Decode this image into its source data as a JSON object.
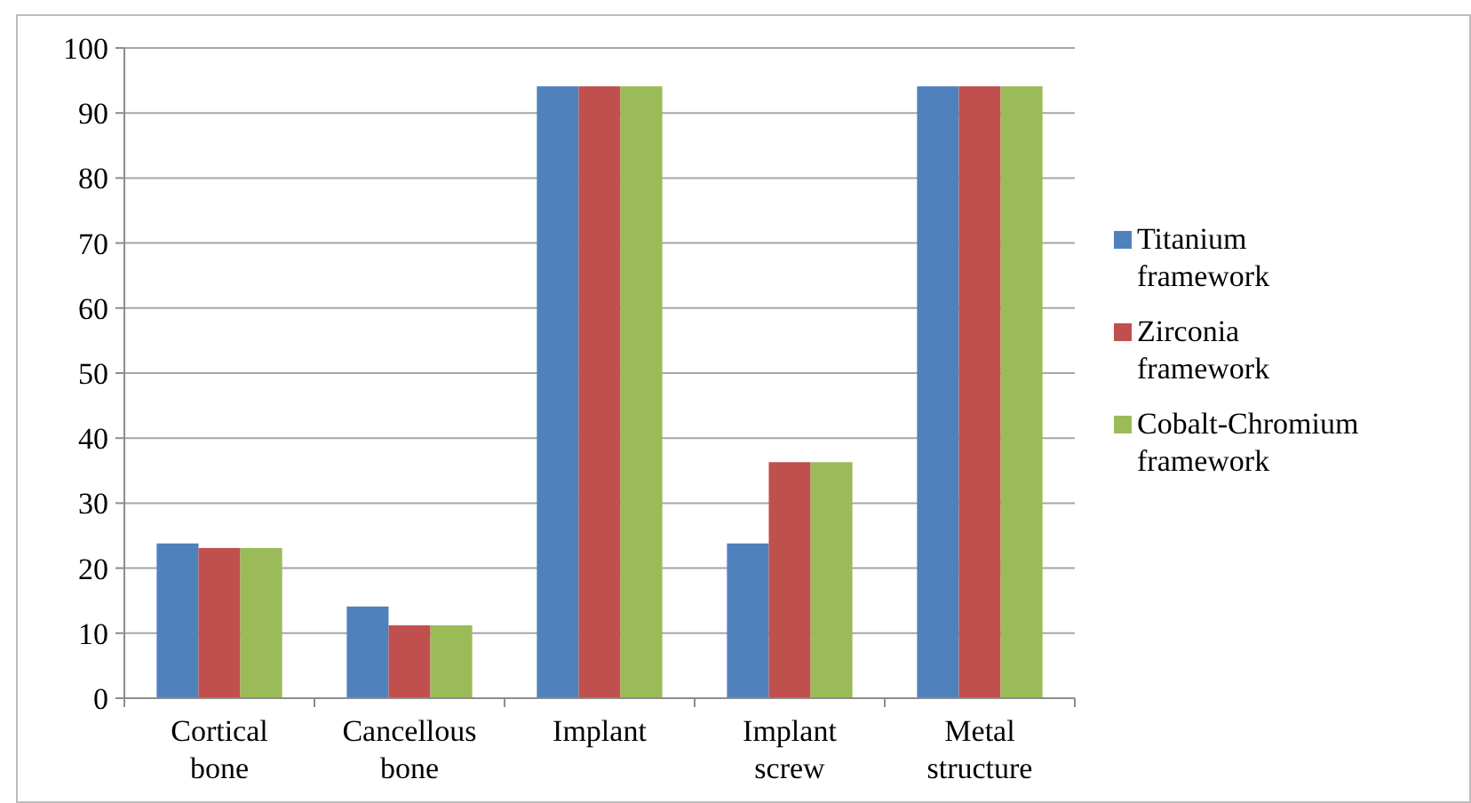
{
  "chart_data": {
    "type": "bar",
    "categories": [
      "Cortical bone",
      "Cancellous bone",
      "Implant",
      "Implant screw",
      "Metal structure"
    ],
    "series": [
      {
        "name": "Titanium framework",
        "color": "#4f81bd",
        "values": [
          23.8,
          14.1,
          94.1,
          23.8,
          94.1
        ]
      },
      {
        "name": "Zirconia framework",
        "color": "#c0504d",
        "values": [
          23.1,
          11.2,
          94.1,
          36.3,
          94.1
        ]
      },
      {
        "name": "Cobalt-Chromium framework",
        "color": "#9bbb59",
        "values": [
          23.1,
          11.2,
          94.1,
          36.3,
          94.1
        ]
      }
    ],
    "ylim": [
      0,
      100
    ],
    "yticks": [
      0,
      10,
      20,
      30,
      40,
      50,
      60,
      70,
      80,
      90,
      100
    ],
    "grid": "y",
    "legend": "right"
  }
}
